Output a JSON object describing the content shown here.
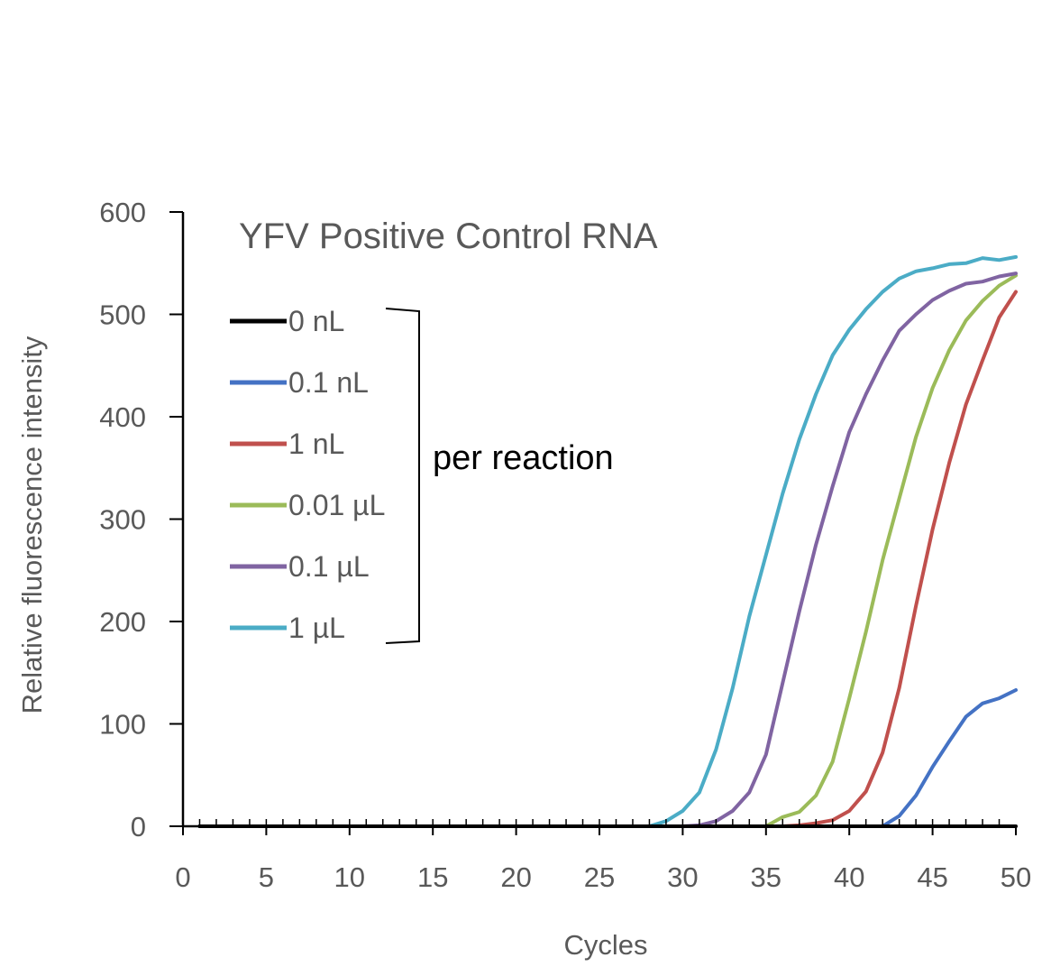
{
  "chart_data": {
    "type": "line",
    "title": "YFV Positive Control RNA",
    "xlabel": "Cycles",
    "ylabel": "Relative fluorescence intensity",
    "xlim": [
      0,
      50
    ],
    "ylim": [
      0,
      600
    ],
    "xticks": [
      "0",
      "5",
      "10",
      "15",
      "20",
      "25",
      "30",
      "35",
      "40",
      "45",
      "50"
    ],
    "yticks": [
      "0",
      "100",
      "200",
      "300",
      "400",
      "500",
      "600"
    ],
    "grid": false,
    "legend_position": "left",
    "bracket_label": "per reaction",
    "x": [
      1,
      2,
      3,
      4,
      5,
      6,
      7,
      8,
      9,
      10,
      11,
      12,
      13,
      14,
      15,
      16,
      17,
      18,
      19,
      20,
      21,
      22,
      23,
      24,
      25,
      26,
      27,
      28,
      29,
      30,
      31,
      32,
      33,
      34,
      35,
      36,
      37,
      38,
      39,
      40,
      41,
      42,
      43,
      44,
      45,
      46,
      47,
      48,
      49,
      50
    ],
    "series": [
      {
        "name": "0 nL",
        "color": "#000000",
        "values": [
          0,
          0,
          0,
          0,
          0,
          0,
          0,
          0,
          0,
          0,
          0,
          0,
          0,
          0,
          0,
          0,
          0,
          0,
          0,
          0,
          0,
          0,
          0,
          0,
          0,
          0,
          0,
          0,
          0,
          0,
          0,
          0,
          0,
          0,
          0,
          0,
          0,
          0,
          0,
          0,
          0,
          0,
          0,
          0,
          0,
          0,
          0,
          0,
          0,
          0
        ]
      },
      {
        "name": "0.1 nL",
        "color": "#4472C4",
        "values": [
          0,
          0,
          0,
          0,
          0,
          0,
          0,
          0,
          0,
          0,
          0,
          0,
          0,
          0,
          0,
          0,
          0,
          0,
          0,
          0,
          0,
          0,
          0,
          0,
          0,
          0,
          0,
          0,
          0,
          0,
          0,
          0,
          0,
          0,
          0,
          0,
          0,
          0,
          0,
          0,
          0,
          0,
          10,
          30,
          58,
          83,
          107,
          120,
          125,
          133
        ]
      },
      {
        "name": "1 nL",
        "color": "#C0504D",
        "values": [
          0,
          0,
          0,
          0,
          0,
          0,
          0,
          0,
          0,
          0,
          0,
          0,
          0,
          0,
          0,
          0,
          0,
          0,
          0,
          0,
          0,
          0,
          0,
          0,
          0,
          0,
          0,
          0,
          0,
          0,
          0,
          0,
          0,
          0,
          0,
          0,
          1,
          3,
          6,
          15,
          34,
          72,
          135,
          215,
          290,
          355,
          412,
          455,
          497,
          522
        ]
      },
      {
        "name": "0.01 µL",
        "color": "#9BBB59",
        "values": [
          0,
          0,
          0,
          0,
          0,
          0,
          0,
          0,
          0,
          0,
          0,
          0,
          0,
          0,
          0,
          0,
          0,
          0,
          0,
          0,
          0,
          0,
          0,
          0,
          0,
          0,
          0,
          0,
          0,
          0,
          0,
          0,
          0,
          0,
          0,
          9,
          14,
          30,
          63,
          125,
          190,
          260,
          320,
          380,
          428,
          465,
          494,
          513,
          528,
          538
        ]
      },
      {
        "name": "0.1 µL",
        "color": "#8064A2",
        "values": [
          0,
          0,
          0,
          0,
          0,
          0,
          0,
          0,
          0,
          0,
          0,
          0,
          0,
          0,
          0,
          0,
          0,
          0,
          0,
          0,
          0,
          0,
          0,
          0,
          0,
          0,
          0,
          0,
          0,
          0,
          1,
          5,
          15,
          33,
          70,
          140,
          210,
          275,
          332,
          385,
          422,
          455,
          484,
          500,
          514,
          523,
          530,
          532,
          537,
          540
        ]
      },
      {
        "name": "1 µL",
        "color": "#4BACC6",
        "values": [
          0,
          0,
          0,
          0,
          0,
          0,
          0,
          0,
          0,
          0,
          0,
          0,
          0,
          0,
          0,
          0,
          0,
          0,
          0,
          0,
          0,
          0,
          0,
          0,
          0,
          0,
          0,
          0,
          5,
          15,
          33,
          75,
          135,
          205,
          265,
          325,
          378,
          422,
          460,
          485,
          505,
          522,
          535,
          542,
          545,
          549,
          550,
          555,
          553,
          556
        ]
      }
    ]
  }
}
